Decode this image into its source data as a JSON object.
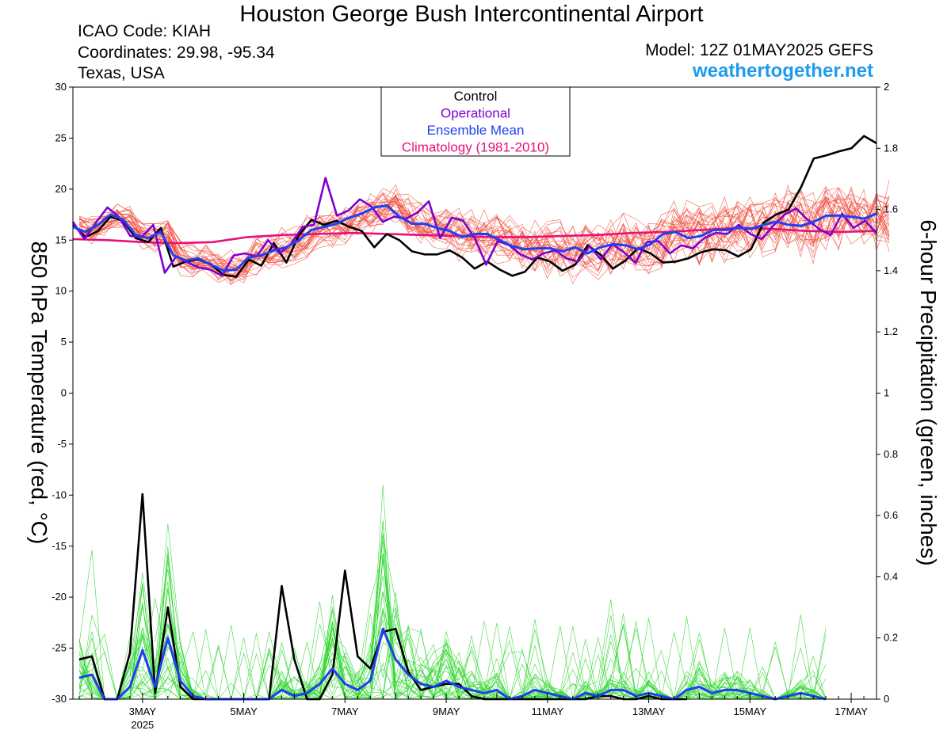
{
  "header": {
    "title": "Houston George Bush Intercontinental Airport",
    "icao": "ICAO Code: KIAH",
    "coordinates": "Coordinates: 29.98, -95.34",
    "region": "Texas, USA",
    "model": "Model: 12Z 01MAY2025 GEFS",
    "site": "weathertogether.net"
  },
  "colors": {
    "control": "#000000",
    "operational": "#8000d0",
    "ensemble_mean": "#2040f0",
    "climatology": "#e8107a",
    "members_temp": "#f04a3a",
    "members_precip": "#2ed62e",
    "site": "#1e9bf0"
  },
  "chart_data": {
    "type": "line",
    "x_unit": "day of May 2025 (12Z 01MAY run)",
    "xlim": [
      1.625,
      17.5
    ],
    "x_ticks": [
      {
        "x": 3,
        "label": "3MAY",
        "sub": "2025"
      },
      {
        "x": 5,
        "label": "5MAY"
      },
      {
        "x": 7,
        "label": "7MAY"
      },
      {
        "x": 9,
        "label": "9MAY"
      },
      {
        "x": 11,
        "label": "11MAY"
      },
      {
        "x": 13,
        "label": "13MAY"
      },
      {
        "x": 15,
        "label": "15MAY"
      },
      {
        "x": 17,
        "label": "17MAY"
      }
    ],
    "left_axis": {
      "label": "850 hPa Temperature (red, °C)",
      "ylim": [
        -30,
        30
      ],
      "ticks": [
        30,
        25,
        20,
        15,
        10,
        5,
        0,
        -5,
        -10,
        -15,
        -20,
        -25,
        -30
      ]
    },
    "right_axis": {
      "label": "6-hour Precipitation (green, inches)",
      "ylim": [
        0,
        2
      ],
      "ticks": [
        "2",
        "1.8",
        "1.6",
        "1.4",
        "1.2",
        "1",
        "0.8",
        "0.6",
        "0.4",
        "0.2",
        "0"
      ]
    },
    "legend": {
      "placement": "top-center",
      "entries": [
        {
          "label": "Control",
          "color": "#000000"
        },
        {
          "label": "Operational",
          "color": "#8000d0"
        },
        {
          "label": "Ensemble Mean",
          "color": "#2040f0"
        },
        {
          "label": "Climatology (1981-2010)",
          "color": "#e8107a"
        }
      ]
    },
    "series": [
      {
        "name": "Control",
        "axis": "left",
        "kind": "temperature",
        "y": [
          16.5,
          15.3,
          15.9,
          17.3,
          16.9,
          15.2,
          14.8,
          16.2,
          12.4,
          12.9,
          13.1,
          12.6,
          11.6,
          11.4,
          13.1,
          12.5,
          14.7,
          12.8,
          15.5,
          17,
          16.5,
          16.9,
          16.3,
          15.9,
          14.3,
          15.6,
          15,
          13.9,
          13.6,
          13.6,
          14,
          13.3,
          12.2,
          12.9,
          12.1,
          11.5,
          11.9,
          13.3,
          12.9,
          12,
          12.6,
          14.5,
          13.6,
          12.2,
          13,
          14.2,
          13.7,
          12.8,
          12.9,
          13.2,
          13.8,
          14.1,
          14,
          13.4,
          14.1,
          16.7,
          17.5,
          18,
          20.2,
          23,
          23.3,
          23.7,
          24,
          25.2,
          24.5
        ]
      },
      {
        "name": "Operational",
        "axis": "left",
        "kind": "temperature",
        "y": [
          16.8,
          15.1,
          16.7,
          18.2,
          17.3,
          15.4,
          15.3,
          16.5,
          11.8,
          13.4,
          12.8,
          12.3,
          12.1,
          11.5,
          13.5,
          13.7,
          13.4,
          15,
          13.7,
          14.6,
          16.3,
          16.5,
          21.1,
          17.4,
          17.9,
          19,
          18.3,
          16.8,
          17.3,
          17.1,
          17.7,
          18.8,
          15.2,
          17.2,
          16.9,
          15.2,
          12.6,
          14.9,
          14.5,
          13.6,
          13.1,
          13.7,
          14,
          13.2,
          12.9,
          14.4,
          13.1,
          14.6,
          13.8,
          12.8,
          14.8,
          14.9,
          13.7,
          14.5,
          14.2,
          15.2,
          15.7,
          15.6,
          16.5,
          15.6,
          15.1,
          16.4,
          17.5,
          18.1,
          17,
          16.1,
          15.5,
          17.6,
          16.2,
          16.9,
          15.7
        ]
      },
      {
        "name": "Ensemble Mean",
        "axis": "left",
        "kind": "temperature",
        "y": [
          16.3,
          15.8,
          16.5,
          17.5,
          17,
          15.5,
          15.2,
          15.8,
          13.5,
          13,
          13.2,
          12.6,
          12,
          12.1,
          13.3,
          13.5,
          14,
          14.3,
          15,
          16,
          16.3,
          16.6,
          17.2,
          17.6,
          18.2,
          18.4,
          17.3,
          16.6,
          16.6,
          16.2,
          15.9,
          15.3,
          15.6,
          15.6,
          15,
          14.4,
          14.1,
          14.2,
          14.2,
          13.9,
          14.3,
          13.7,
          14.3,
          14.6,
          14.5,
          14.1,
          14.6,
          15.6,
          15.8,
          15.2,
          15.4,
          16,
          16,
          16.2,
          16.1,
          16.5,
          16.8,
          16.5,
          16.4,
          16.8,
          17.4,
          17.4,
          17.3,
          17.1,
          17.6
        ]
      },
      {
        "name": "Climatology (1981-2010)",
        "axis": "left",
        "kind": "temperature",
        "y": [
          15.1,
          15,
          14.8,
          14.7,
          14.8,
          15.3,
          15.5,
          15.6,
          15.7,
          15.6,
          15.5,
          15.4,
          15.3,
          15.3,
          15.4,
          15.5,
          15.7,
          15.8,
          16,
          16.2,
          16.1,
          15.9,
          15.8,
          15.9
        ]
      },
      {
        "name": "Control",
        "axis": "right",
        "kind": "precipitation",
        "y": [
          0.13,
          0.14,
          0,
          0,
          0.15,
          0.67,
          0.02,
          0.3,
          0.04,
          0,
          0,
          0,
          0,
          0,
          0,
          0,
          0.37,
          0.13,
          0,
          0,
          0.08,
          0.42,
          0.14,
          0.1,
          0.22,
          0.23,
          0.09,
          0.03,
          0.04,
          0.05,
          0.05,
          0.01,
          0,
          0,
          0,
          0,
          0,
          0,
          0,
          0,
          0,
          0.01,
          0.01,
          0,
          0,
          0.01,
          0,
          0,
          0
        ]
      },
      {
        "name": "Ensemble Mean",
        "axis": "right",
        "kind": "precipitation",
        "y": [
          0.07,
          0.08,
          0,
          0,
          0.04,
          0.16,
          0.04,
          0.2,
          0.06,
          0.01,
          0,
          0,
          0,
          0,
          0,
          0,
          0.03,
          0.01,
          0.02,
          0.05,
          0.1,
          0.05,
          0.03,
          0.06,
          0.23,
          0.13,
          0.08,
          0.05,
          0.04,
          0.06,
          0.04,
          0.03,
          0.02,
          0.03,
          0,
          0.01,
          0.03,
          0.02,
          0.01,
          0,
          0.02,
          0.01,
          0.03,
          0.03,
          0.01,
          0.02,
          0.01,
          0,
          0.03,
          0.04,
          0.02,
          0.03,
          0.03,
          0.02,
          0.01,
          0,
          0.01,
          0.02,
          0.01,
          0
        ]
      }
    ]
  }
}
